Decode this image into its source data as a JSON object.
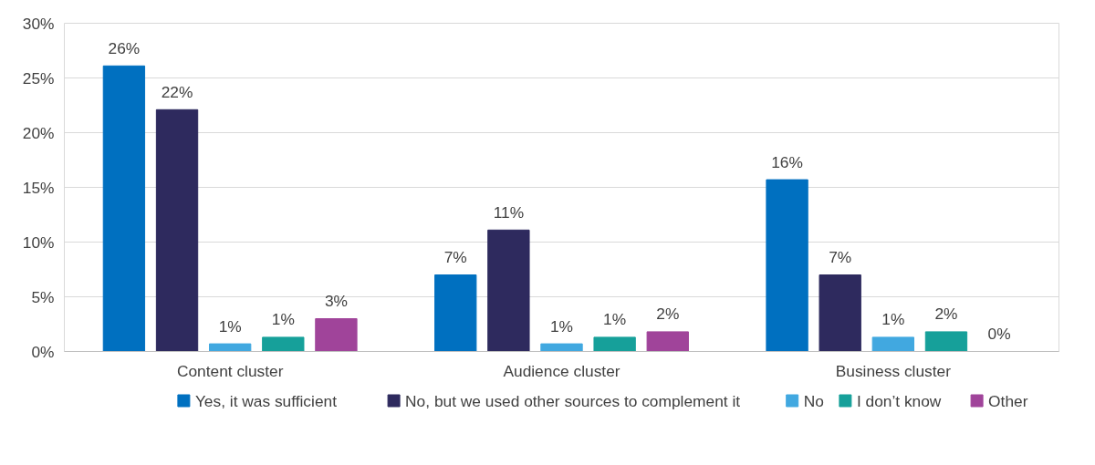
{
  "chart_data": {
    "type": "bar",
    "categories": [
      "Content cluster",
      "Audience cluster",
      "Business cluster"
    ],
    "series": [
      {
        "name": "Yes, it was sufficient",
        "color": "#0070c0",
        "values": [
          26.1,
          7.0,
          15.7
        ],
        "value_labels": [
          "26%",
          "7%",
          "16%"
        ]
      },
      {
        "name": "No, but we used other sources to complement it",
        "color": "#2e2a5e",
        "values": [
          22.1,
          11.1,
          7.0
        ],
        "value_labels": [
          "22%",
          "11%",
          "7%"
        ]
      },
      {
        "name": "No",
        "color": "#41a8e0",
        "values": [
          0.7,
          0.7,
          1.3
        ],
        "value_labels": [
          "1%",
          "1%",
          "1%"
        ]
      },
      {
        "name": "I don’t know",
        "color": "#16a09a",
        "values": [
          1.3,
          1.3,
          1.8
        ],
        "value_labels": [
          "1%",
          "1%",
          "2%"
        ]
      },
      {
        "name": "Other",
        "color": "#a0449a",
        "values": [
          3.0,
          1.8,
          0
        ],
        "value_labels": [
          "3%",
          "2%",
          "0%"
        ]
      }
    ],
    "ylim": [
      0,
      30
    ],
    "yticks": [
      {
        "value": 0,
        "label": "0%"
      },
      {
        "value": 5,
        "label": "5%"
      },
      {
        "value": 10,
        "label": "10%"
      },
      {
        "value": 15,
        "label": "15%"
      },
      {
        "value": 20,
        "label": "20%"
      },
      {
        "value": 25,
        "label": "25%"
      },
      {
        "value": 30,
        "label": "30%"
      }
    ],
    "grid": "y",
    "legend": "bottom"
  }
}
